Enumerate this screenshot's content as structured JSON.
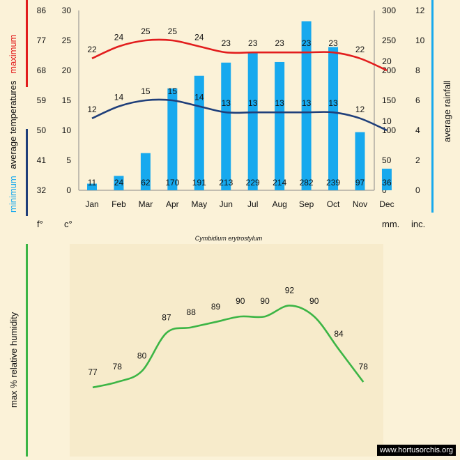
{
  "chart_data": [
    {
      "type": "bar+line",
      "title": "Cymbidium erytrostylum",
      "categories": [
        "Jan",
        "Feb",
        "Mar",
        "Apr",
        "May",
        "Jun",
        "Jul",
        "Aug",
        "Sep",
        "Oct",
        "Nov",
        "Dec"
      ],
      "series": [
        {
          "name": "maximum",
          "type": "line",
          "color": "#e21d1d",
          "values": [
            22,
            24,
            25,
            25,
            24,
            23,
            23,
            23,
            23,
            23,
            22,
            20
          ]
        },
        {
          "name": "minimum",
          "type": "line",
          "color": "#1f3f7a",
          "values": [
            12,
            14,
            15,
            15,
            14,
            13,
            13,
            13,
            13,
            13,
            12,
            10
          ]
        },
        {
          "name": "average rainfall",
          "type": "bar",
          "color": "#17a9ee",
          "values": [
            11,
            24,
            62,
            170,
            191,
            213,
            229,
            214,
            282,
            239,
            97,
            36
          ]
        }
      ],
      "axes": {
        "fahrenheit": {
          "ticks": [
            "86",
            "77",
            "68",
            "59",
            "50",
            "41",
            "32"
          ],
          "unit": "f°"
        },
        "celsius": {
          "ticks": [
            "30",
            "25",
            "20",
            "15",
            "10",
            "5",
            "0"
          ],
          "unit": "c°",
          "ylim": [
            0,
            30
          ]
        },
        "mm": {
          "ticks": [
            "300",
            "250",
            "200",
            "150",
            "100",
            "50",
            "0"
          ],
          "unit": "mm.",
          "ylim": [
            0,
            300
          ]
        },
        "inches": {
          "ticks": [
            "12",
            "10",
            "8",
            "6",
            "4",
            "2",
            "0"
          ],
          "unit": "inc."
        }
      },
      "left_labels": {
        "maximum": "maximum",
        "average_temperatures": "average  temperatures",
        "minimum": "minimum"
      },
      "right_label": "average  rainfall"
    },
    {
      "type": "line",
      "ylabel": "max  %  relative  humidity",
      "color": "#3cb545",
      "values": [
        77,
        78,
        80,
        87,
        88,
        89,
        90,
        90,
        92,
        90,
        84,
        78
      ],
      "ylim": [
        72,
        95
      ]
    }
  ],
  "watermark": "www.hortusorchis.org"
}
